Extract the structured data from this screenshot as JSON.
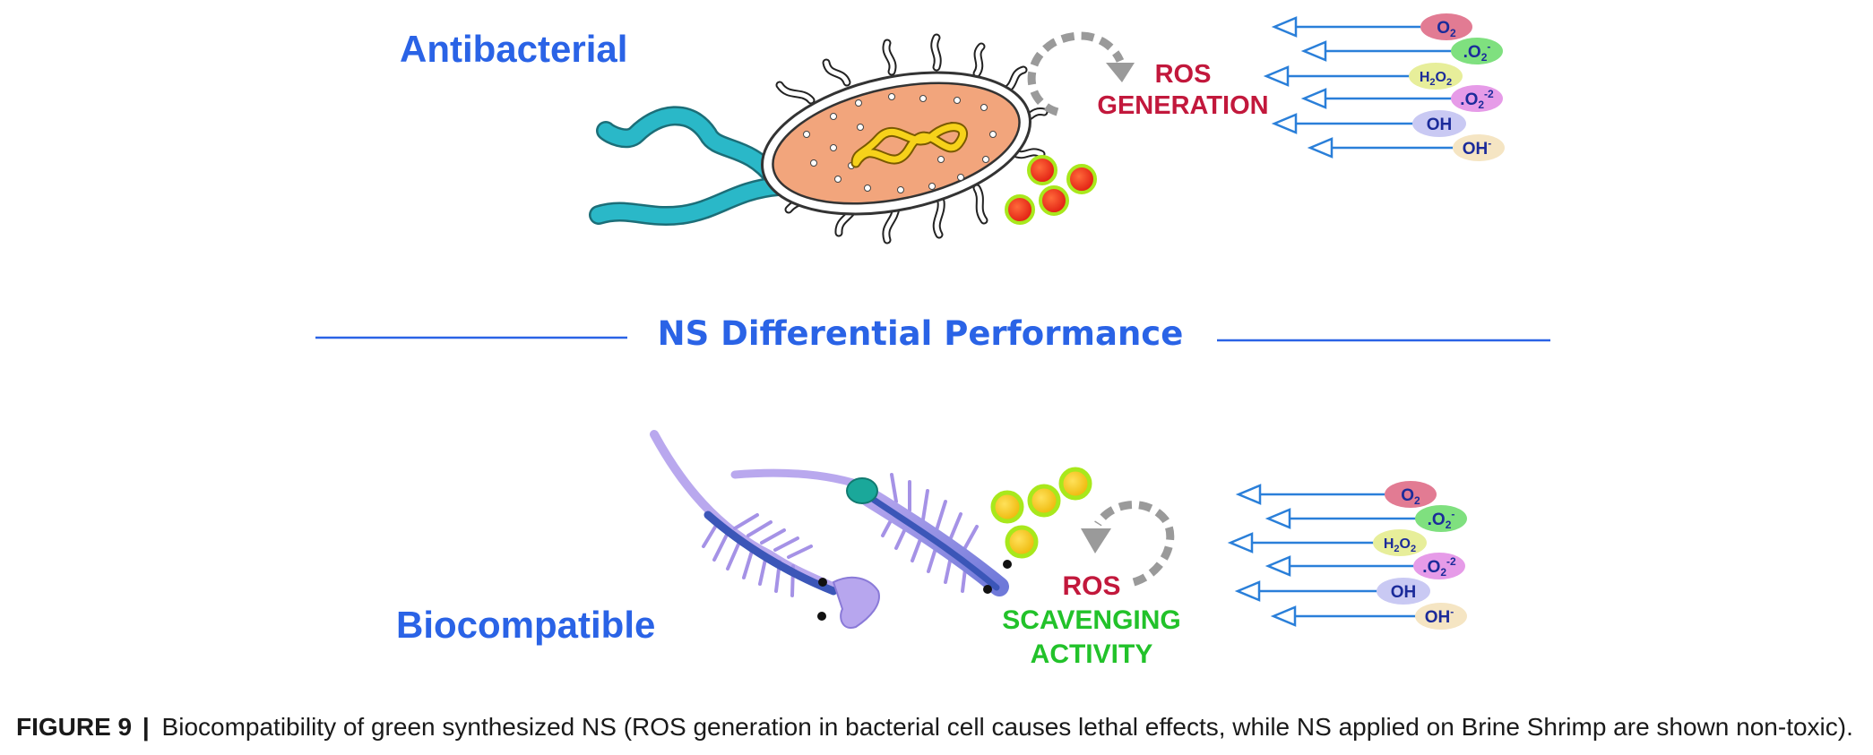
{
  "labels": {
    "antibacterial": "Antibacterial",
    "biocompatible": "Biocompatible",
    "center_title": "NS Differential Performance",
    "ros_top_line1": "ROS",
    "ros_top_line2": "GENERATION",
    "ros_bottom_line1": "ROS",
    "ros_bottom_line2": "SCAVENGING",
    "ros_bottom_line3": "ACTIVITY"
  },
  "ros_species": {
    "o2": {
      "base": "O",
      "sub": "2",
      "color": "#e27b93"
    },
    "o2_radical": {
      "dot": ".",
      "base": "O",
      "sub": "2",
      "sup": "-",
      "color": "#7fe07f"
    },
    "h2o2": {
      "h": "H",
      "sub_h": "2",
      "o": "O",
      "sub_o": "2",
      "color": "#e7ee9a"
    },
    "o2_2minus": {
      "dot": ".",
      "base": "O",
      "sub": "2",
      "sup": "-2",
      "color": "#e69be8"
    },
    "oh": {
      "text": "OH",
      "color": "#c9c9f3"
    },
    "oh_minus": {
      "base": "OH",
      "sup": "-",
      "color": "#f5e5c3"
    }
  },
  "colors": {
    "label_blue": "#2a63e6",
    "ros_red": "#c2183c",
    "scavenging_green": "#22c22a",
    "arrow_blue": "#2a7fd9",
    "cell_body": "#f2a57c",
    "flagella": "#2ab8c8",
    "shrimp": "#8a7ad8",
    "np_red": "#ee2a1a",
    "np_yellow": "#f2c40e",
    "np_halo": "#a8e81c"
  },
  "caption": {
    "label": "FIGURE 9",
    "separator": "|",
    "text": "Biocompatibility of green synthesized NS (ROS generation in bacterial cell causes lethal effects, while NS applied on Brine Shrimp are shown non-toxic)."
  }
}
